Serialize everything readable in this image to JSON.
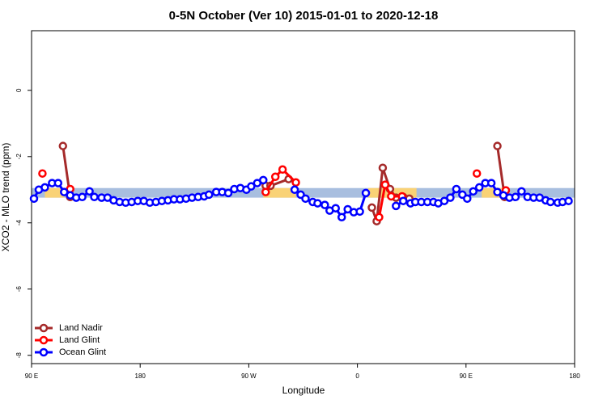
{
  "chart_data": {
    "type": "line",
    "title": "0-5N October (Ver 10)   2015-01-01 to 2020-12-18",
    "x_label": "Longitude",
    "y_label": "XCO2 - MLO trend (ppm)",
    "xlim": [
      90,
      540
    ],
    "ylim": [
      -8.25,
      1.8
    ],
    "xticks": [
      {
        "value": 90,
        "label": "90 E"
      },
      {
        "value": 180,
        "label": "180"
      },
      {
        "value": 270,
        "label": "90 W"
      },
      {
        "value": 360,
        "label": "0"
      },
      {
        "value": 450,
        "label": "90 E"
      },
      {
        "value": 540,
        "label": "180"
      }
    ],
    "yticks": [
      0,
      -2,
      -4,
      -6,
      -8
    ],
    "band": {
      "ymin": -3.24,
      "ymax": -2.95,
      "color": "#a8bedf",
      "highlight_color": "#f9d276",
      "highlights": [
        [
          101,
          117
        ],
        [
          282,
          309
        ],
        [
          369,
          409
        ],
        [
          463,
          480
        ]
      ]
    },
    "legend": "bottom-left",
    "series": [
      {
        "name": "Land Nadir",
        "color": "#a52a2a",
        "x": [
          116,
          122,
          null,
          284,
          288,
          303,
          null,
          372,
          376,
          381,
          387,
          392,
          398,
          403,
          null,
          476,
          482
        ],
        "values": [
          -1.68,
          -3.22,
          null,
          -2.88,
          -2.88,
          -2.68,
          null,
          -3.54,
          -3.95,
          -2.34,
          -2.98,
          -3.24,
          -3.22,
          -3.27,
          null,
          -1.68,
          -3.22
        ]
      },
      {
        "name": "Land Glint",
        "color": "#ff0000",
        "x": [
          99,
          null,
          122,
          null,
          284,
          292,
          298,
          309,
          null,
          378,
          383,
          388,
          397,
          null,
          459,
          null,
          483
        ],
        "values": [
          -2.51,
          null,
          -2.98,
          null,
          -3.07,
          -2.61,
          -2.39,
          -2.78,
          null,
          -3.83,
          -2.85,
          -3.2,
          -3.2,
          null,
          -2.51,
          null,
          -3.02
        ]
      },
      {
        "name": "Ocean Glint",
        "color": "#0000ff",
        "x": [
          92,
          96,
          101,
          107,
          112,
          117,
          122,
          127,
          132,
          138,
          142,
          148,
          153,
          158,
          163,
          168,
          173,
          178,
          183,
          188,
          193,
          198,
          203,
          208,
          213,
          218,
          223,
          228,
          233,
          237,
          243,
          248,
          253,
          258,
          263,
          268,
          272,
          277,
          282,
          null,
          308,
          313,
          317,
          323,
          327,
          333,
          337,
          342,
          347,
          352,
          357,
          362,
          367,
          null,
          392,
          398,
          404,
          408,
          413,
          418,
          423,
          427,
          432,
          437,
          442,
          447,
          451,
          456,
          461,
          466,
          471,
          476,
          481,
          486,
          491,
          496,
          501,
          506,
          511,
          516,
          520,
          526,
          530,
          535
        ],
        "values": [
          -3.27,
          -3.0,
          -2.93,
          -2.8,
          -2.8,
          -3.07,
          -3.17,
          -3.24,
          -3.22,
          -3.05,
          -3.22,
          -3.24,
          -3.24,
          -3.32,
          -3.37,
          -3.39,
          -3.37,
          -3.34,
          -3.34,
          -3.39,
          -3.37,
          -3.34,
          -3.32,
          -3.29,
          -3.29,
          -3.27,
          -3.24,
          -3.22,
          -3.2,
          -3.15,
          -3.07,
          -3.07,
          -3.1,
          -2.98,
          -2.95,
          -3.0,
          -2.9,
          -2.8,
          -2.71,
          null,
          -3.0,
          -3.15,
          -3.27,
          -3.37,
          -3.41,
          -3.46,
          -3.63,
          -3.56,
          -3.83,
          -3.59,
          -3.68,
          -3.66,
          -3.1,
          null,
          -3.49,
          -3.34,
          -3.41,
          -3.37,
          -3.37,
          -3.37,
          -3.37,
          -3.41,
          -3.34,
          -3.24,
          -2.98,
          -3.15,
          -3.27,
          -3.05,
          -2.93,
          -2.8,
          -2.8,
          -3.07,
          -3.17,
          -3.24,
          -3.22,
          -3.05,
          -3.22,
          -3.24,
          -3.24,
          -3.32,
          -3.37,
          -3.39,
          -3.37,
          -3.34
        ]
      }
    ]
  }
}
